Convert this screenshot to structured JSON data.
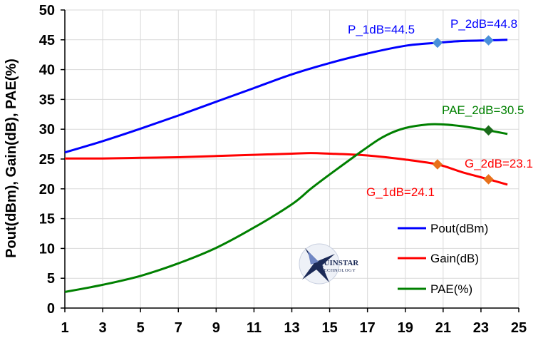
{
  "chart_data": {
    "type": "line",
    "ylabel": "Pout(dBm), Gain(dB), PAE(%)",
    "xlabel": "",
    "xlim": [
      1,
      25
    ],
    "ylim": [
      0,
      50
    ],
    "x_ticks": [
      "1",
      "3",
      "5",
      "7",
      "9",
      "11",
      "13",
      "15",
      "17",
      "19",
      "21",
      "23",
      "25"
    ],
    "y_ticks": [
      "0",
      "5",
      "10",
      "15",
      "20",
      "25",
      "30",
      "35",
      "40",
      "45",
      "50"
    ],
    "grid": true,
    "legend_position": "bottom-right",
    "series": [
      {
        "name": "Pout(dBm)",
        "color": "#0000ff",
        "points": [
          [
            1,
            26.1
          ],
          [
            3,
            28.0
          ],
          [
            5,
            30.1
          ],
          [
            7,
            32.3
          ],
          [
            9,
            34.6
          ],
          [
            11,
            36.9
          ],
          [
            13,
            39.2
          ],
          [
            15,
            41.1
          ],
          [
            17,
            42.7
          ],
          [
            19,
            44.0
          ],
          [
            20.7,
            44.5
          ],
          [
            22,
            44.8
          ],
          [
            23.4,
            44.9
          ],
          [
            24.4,
            45.0
          ]
        ]
      },
      {
        "name": "Gain(dB)",
        "color": "#ff0000",
        "points": [
          [
            1,
            25.1
          ],
          [
            3,
            25.1
          ],
          [
            5,
            25.2
          ],
          [
            7,
            25.3
          ],
          [
            9,
            25.5
          ],
          [
            11,
            25.7
          ],
          [
            13,
            25.9
          ],
          [
            14,
            26.0
          ],
          [
            15,
            25.9
          ],
          [
            17,
            25.6
          ],
          [
            19,
            24.9
          ],
          [
            20.7,
            24.1
          ],
          [
            22,
            22.8
          ],
          [
            23.4,
            21.6
          ],
          [
            24.4,
            20.7
          ]
        ]
      },
      {
        "name": "PAE(%)",
        "color": "#008000",
        "points": [
          [
            1,
            2.7
          ],
          [
            3,
            3.9
          ],
          [
            5,
            5.4
          ],
          [
            7,
            7.5
          ],
          [
            9,
            10.1
          ],
          [
            11,
            13.5
          ],
          [
            13,
            17.4
          ],
          [
            14,
            20.0
          ],
          [
            15,
            22.4
          ],
          [
            17,
            27.0
          ],
          [
            18,
            29.0
          ],
          [
            19,
            30.2
          ],
          [
            20.2,
            30.8
          ],
          [
            21,
            30.8
          ],
          [
            22,
            30.5
          ],
          [
            23.4,
            29.8
          ],
          [
            24.4,
            29.2
          ]
        ]
      }
    ],
    "markers": [
      {
        "series": "Pout(dBm)",
        "x": 20.7,
        "y": 44.5,
        "color": "#4a90d9"
      },
      {
        "series": "Pout(dBm)",
        "x": 23.4,
        "y": 44.9,
        "color": "#4a90d9"
      },
      {
        "series": "Gain(dB)",
        "x": 20.7,
        "y": 24.1,
        "color": "#e8701a"
      },
      {
        "series": "Gain(dB)",
        "x": 23.4,
        "y": 21.6,
        "color": "#e8701a"
      },
      {
        "series": "PAE(%)",
        "x": 23.4,
        "y": 29.8,
        "color": "#1a6b1a"
      }
    ],
    "annotations": [
      {
        "text": "P_1dB=44.5",
        "color": "#0000ff"
      },
      {
        "text": "P_2dB=44.8",
        "color": "#0000ff"
      },
      {
        "text": "PAE_2dB=30.5",
        "color": "#008000"
      },
      {
        "text": "G_1dB=24.1",
        "color": "#ff0000"
      },
      {
        "text": "G_2dB=23.1",
        "color": "#ff0000"
      }
    ]
  },
  "logo": {
    "name": "QUINSTAR",
    "subtitle": "TECHNOLOGY"
  }
}
